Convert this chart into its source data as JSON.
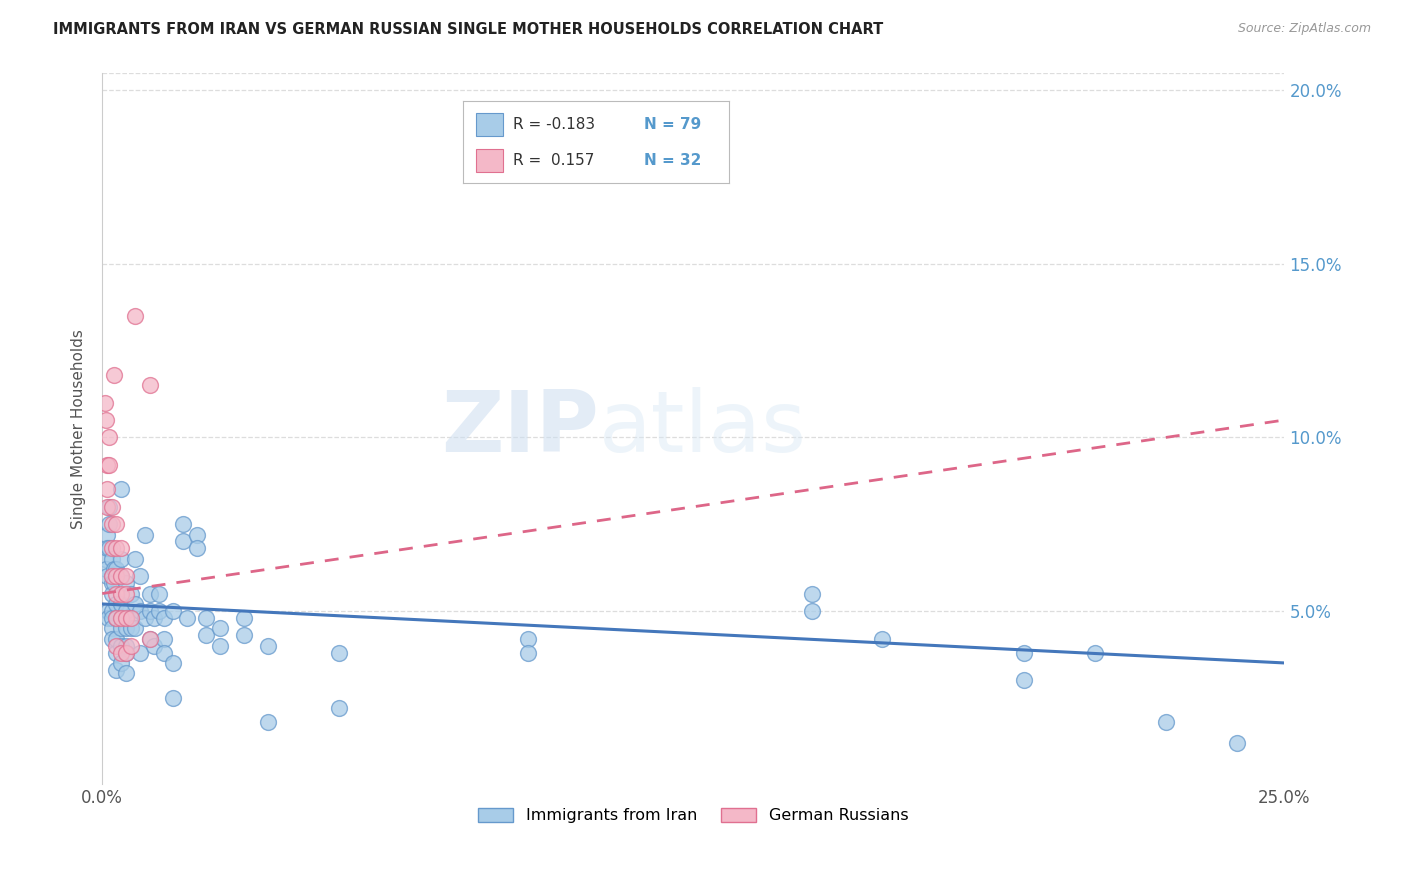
{
  "title": "IMMIGRANTS FROM IRAN VS GERMAN RUSSIAN SINGLE MOTHER HOUSEHOLDS CORRELATION CHART",
  "source": "Source: ZipAtlas.com",
  "ylabel": "Single Mother Households",
  "xlim": [
    0.0,
    0.25
  ],
  "ylim": [
    0.0,
    0.205
  ],
  "grid_color": "#dddddd",
  "background_color": "#ffffff",
  "watermark1": "ZIP",
  "watermark2": "atlas",
  "color_iran": "#a8cce8",
  "color_iran_edge": "#6699cc",
  "color_german": "#f4b8c8",
  "color_german_edge": "#e07090",
  "color_iran_line": "#4477bb",
  "color_german_line": "#dd6688",
  "iran_scatter": [
    [
      0.0005,
      0.065
    ],
    [
      0.0008,
      0.062
    ],
    [
      0.001,
      0.072
    ],
    [
      0.001,
      0.068
    ],
    [
      0.001,
      0.06
    ],
    [
      0.0012,
      0.05
    ],
    [
      0.0012,
      0.048
    ],
    [
      0.0015,
      0.08
    ],
    [
      0.0015,
      0.075
    ],
    [
      0.0015,
      0.068
    ],
    [
      0.002,
      0.065
    ],
    [
      0.002,
      0.06
    ],
    [
      0.002,
      0.058
    ],
    [
      0.002,
      0.055
    ],
    [
      0.002,
      0.05
    ],
    [
      0.002,
      0.048
    ],
    [
      0.002,
      0.045
    ],
    [
      0.002,
      0.042
    ],
    [
      0.0025,
      0.062
    ],
    [
      0.0025,
      0.058
    ],
    [
      0.003,
      0.052
    ],
    [
      0.003,
      0.048
    ],
    [
      0.003,
      0.062
    ],
    [
      0.003,
      0.042
    ],
    [
      0.003,
      0.038
    ],
    [
      0.003,
      0.033
    ],
    [
      0.004,
      0.085
    ],
    [
      0.004,
      0.065
    ],
    [
      0.004,
      0.06
    ],
    [
      0.004,
      0.052
    ],
    [
      0.004,
      0.048
    ],
    [
      0.004,
      0.045
    ],
    [
      0.004,
      0.04
    ],
    [
      0.004,
      0.035
    ],
    [
      0.005,
      0.058
    ],
    [
      0.005,
      0.05
    ],
    [
      0.005,
      0.045
    ],
    [
      0.005,
      0.04
    ],
    [
      0.005,
      0.038
    ],
    [
      0.005,
      0.032
    ],
    [
      0.006,
      0.055
    ],
    [
      0.006,
      0.048
    ],
    [
      0.006,
      0.045
    ],
    [
      0.007,
      0.065
    ],
    [
      0.007,
      0.052
    ],
    [
      0.007,
      0.045
    ],
    [
      0.008,
      0.06
    ],
    [
      0.008,
      0.05
    ],
    [
      0.008,
      0.038
    ],
    [
      0.009,
      0.072
    ],
    [
      0.009,
      0.048
    ],
    [
      0.01,
      0.055
    ],
    [
      0.01,
      0.05
    ],
    [
      0.01,
      0.042
    ],
    [
      0.011,
      0.048
    ],
    [
      0.011,
      0.04
    ],
    [
      0.012,
      0.055
    ],
    [
      0.012,
      0.05
    ],
    [
      0.013,
      0.048
    ],
    [
      0.013,
      0.042
    ],
    [
      0.013,
      0.038
    ],
    [
      0.015,
      0.05
    ],
    [
      0.015,
      0.035
    ],
    [
      0.015,
      0.025
    ],
    [
      0.017,
      0.075
    ],
    [
      0.017,
      0.07
    ],
    [
      0.018,
      0.048
    ],
    [
      0.02,
      0.072
    ],
    [
      0.02,
      0.068
    ],
    [
      0.022,
      0.048
    ],
    [
      0.022,
      0.043
    ],
    [
      0.025,
      0.045
    ],
    [
      0.025,
      0.04
    ],
    [
      0.03,
      0.048
    ],
    [
      0.03,
      0.043
    ],
    [
      0.035,
      0.04
    ],
    [
      0.035,
      0.018
    ],
    [
      0.05,
      0.038
    ],
    [
      0.05,
      0.022
    ],
    [
      0.09,
      0.042
    ],
    [
      0.09,
      0.038
    ],
    [
      0.15,
      0.055
    ],
    [
      0.15,
      0.05
    ],
    [
      0.165,
      0.042
    ],
    [
      0.195,
      0.038
    ],
    [
      0.195,
      0.03
    ],
    [
      0.21,
      0.038
    ],
    [
      0.225,
      0.018
    ],
    [
      0.24,
      0.012
    ]
  ],
  "german_scatter": [
    [
      0.0005,
      0.11
    ],
    [
      0.0008,
      0.105
    ],
    [
      0.001,
      0.092
    ],
    [
      0.001,
      0.085
    ],
    [
      0.001,
      0.08
    ],
    [
      0.0015,
      0.1
    ],
    [
      0.0015,
      0.092
    ],
    [
      0.002,
      0.08
    ],
    [
      0.002,
      0.075
    ],
    [
      0.002,
      0.068
    ],
    [
      0.002,
      0.06
    ],
    [
      0.0025,
      0.118
    ],
    [
      0.003,
      0.075
    ],
    [
      0.003,
      0.068
    ],
    [
      0.003,
      0.06
    ],
    [
      0.003,
      0.055
    ],
    [
      0.003,
      0.048
    ],
    [
      0.003,
      0.04
    ],
    [
      0.004,
      0.068
    ],
    [
      0.004,
      0.06
    ],
    [
      0.004,
      0.055
    ],
    [
      0.004,
      0.048
    ],
    [
      0.004,
      0.038
    ],
    [
      0.005,
      0.06
    ],
    [
      0.005,
      0.055
    ],
    [
      0.005,
      0.048
    ],
    [
      0.005,
      0.038
    ],
    [
      0.006,
      0.048
    ],
    [
      0.006,
      0.04
    ],
    [
      0.007,
      0.135
    ],
    [
      0.01,
      0.115
    ],
    [
      0.01,
      0.042
    ]
  ],
  "iran_trendline_x": [
    0.0,
    0.25
  ],
  "iran_trendline_y": [
    0.052,
    0.035
  ],
  "german_trendline_x": [
    0.0,
    0.25
  ],
  "german_trendline_y": [
    0.055,
    0.105
  ]
}
